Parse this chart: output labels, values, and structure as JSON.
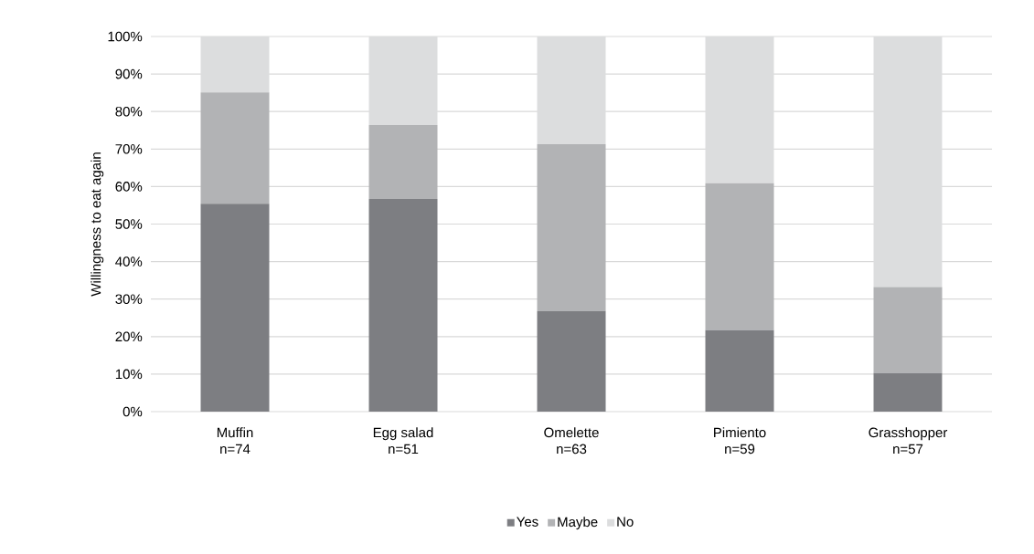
{
  "chart_data": {
    "type": "bar",
    "stacked": true,
    "ylabel": "Willingness to eat again",
    "categories": [
      "Muffin\nn=74",
      "Egg salad\nn=51",
      "Omelette\nn=63",
      "Pimiento\nn=59",
      "Grasshopper\nn=57"
    ],
    "series": [
      {
        "name": "Yes",
        "color": "#7d7e82",
        "values": [
          55.4,
          56.7,
          26.8,
          21.7,
          10.3
        ]
      },
      {
        "name": "Maybe",
        "color": "#b2b3b5",
        "values": [
          29.7,
          19.7,
          44.5,
          39.2,
          22.9
        ]
      },
      {
        "name": "No",
        "color": "#dcddde",
        "values": [
          14.9,
          23.6,
          28.7,
          39.1,
          66.8
        ]
      }
    ],
    "ylim": [
      0,
      100
    ],
    "yticks": [
      {
        "value": 0,
        "label": "0%"
      },
      {
        "value": 10,
        "label": "10%"
      },
      {
        "value": 20,
        "label": "20%"
      },
      {
        "value": 30,
        "label": "30%"
      },
      {
        "value": 40,
        "label": "40%"
      },
      {
        "value": 50,
        "label": "50%"
      },
      {
        "value": 60,
        "label": "60%"
      },
      {
        "value": 70,
        "label": "70%"
      },
      {
        "value": 80,
        "label": "80%"
      },
      {
        "value": 90,
        "label": "90%"
      },
      {
        "value": 100,
        "label": "100%"
      }
    ],
    "grid": "y",
    "legend": "bottom"
  }
}
